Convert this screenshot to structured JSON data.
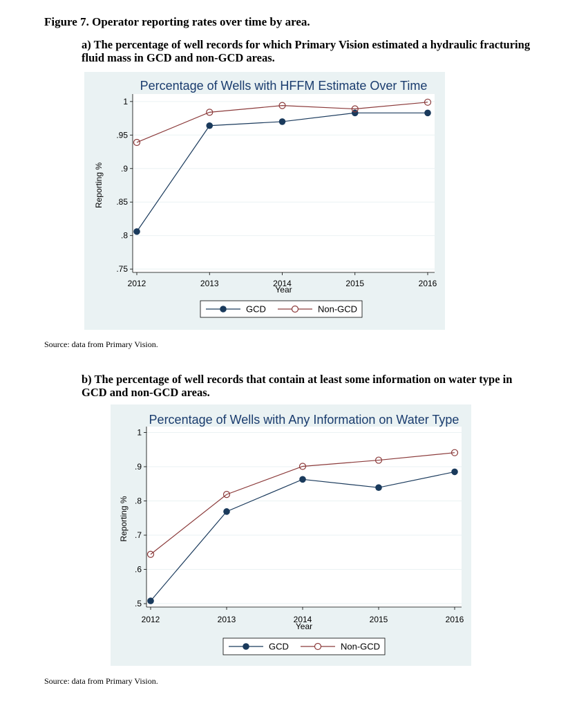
{
  "figure": {
    "title": "Figure 7. Operator reporting rates over time by area."
  },
  "panel_a": {
    "caption": "a)  The percentage of well records for which Primary Vision estimated a hydraulic fracturing fluid mass in GCD and non-GCD areas.",
    "source": "Source: data from Primary Vision."
  },
  "panel_b": {
    "caption": "b)  The percentage of well records that contain at least some information on water type in GCD and non-GCD areas.",
    "source": "Source: data from Primary Vision."
  },
  "colors": {
    "gcd": "#1a3a5c",
    "non_gcd": "#8b3a3a",
    "background": "#eaf2f3",
    "plot": "#ffffff",
    "title": "#1a3c6e",
    "grid": "#eaf2f3"
  },
  "chart_data": [
    {
      "type": "line",
      "title": "Percentage of Wells with HFFM Estimate Over Time",
      "xlabel": "Year",
      "ylabel": "Reporting %",
      "x": [
        2012,
        2013,
        2014,
        2015,
        2016
      ],
      "x_ticks": [
        "2012",
        "2013",
        "2014",
        "2015",
        "2016"
      ],
      "ylim": [
        0.745,
        1.005
      ],
      "y_ticks": [
        1,
        0.95,
        0.9,
        0.85,
        0.8,
        0.75
      ],
      "y_tick_labels": [
        "1",
        ".95",
        ".9",
        ".85",
        ".8",
        ".75"
      ],
      "grid": true,
      "legend_position": "bottom",
      "series": [
        {
          "name": "GCD",
          "marker": "filled-circle",
          "values": [
            0.806,
            0.964,
            0.97,
            0.983,
            0.983
          ]
        },
        {
          "name": "Non-GCD",
          "marker": "hollow-circle",
          "values": [
            0.939,
            0.984,
            0.994,
            0.989,
            0.999
          ]
        }
      ]
    },
    {
      "type": "line",
      "title": "Percentage of Wells with Any Information on Water Type",
      "xlabel": "Year",
      "ylabel": "Reporting %",
      "x": [
        2012,
        2013,
        2014,
        2015,
        2016
      ],
      "x_ticks": [
        "2012",
        "2013",
        "2014",
        "2015",
        "2016"
      ],
      "ylim": [
        0.49,
        1.005
      ],
      "y_ticks": [
        1,
        0.9,
        0.8,
        0.7,
        0.6,
        0.5
      ],
      "y_tick_labels": [
        "1",
        ".9",
        ".8",
        ".7",
        ".6",
        ".5"
      ],
      "grid": true,
      "legend_position": "bottom",
      "series": [
        {
          "name": "GCD",
          "marker": "filled-circle",
          "values": [
            0.508,
            0.769,
            0.863,
            0.839,
            0.885
          ]
        },
        {
          "name": "Non-GCD",
          "marker": "hollow-circle",
          "values": [
            0.644,
            0.819,
            0.901,
            0.919,
            0.941
          ]
        }
      ]
    }
  ]
}
